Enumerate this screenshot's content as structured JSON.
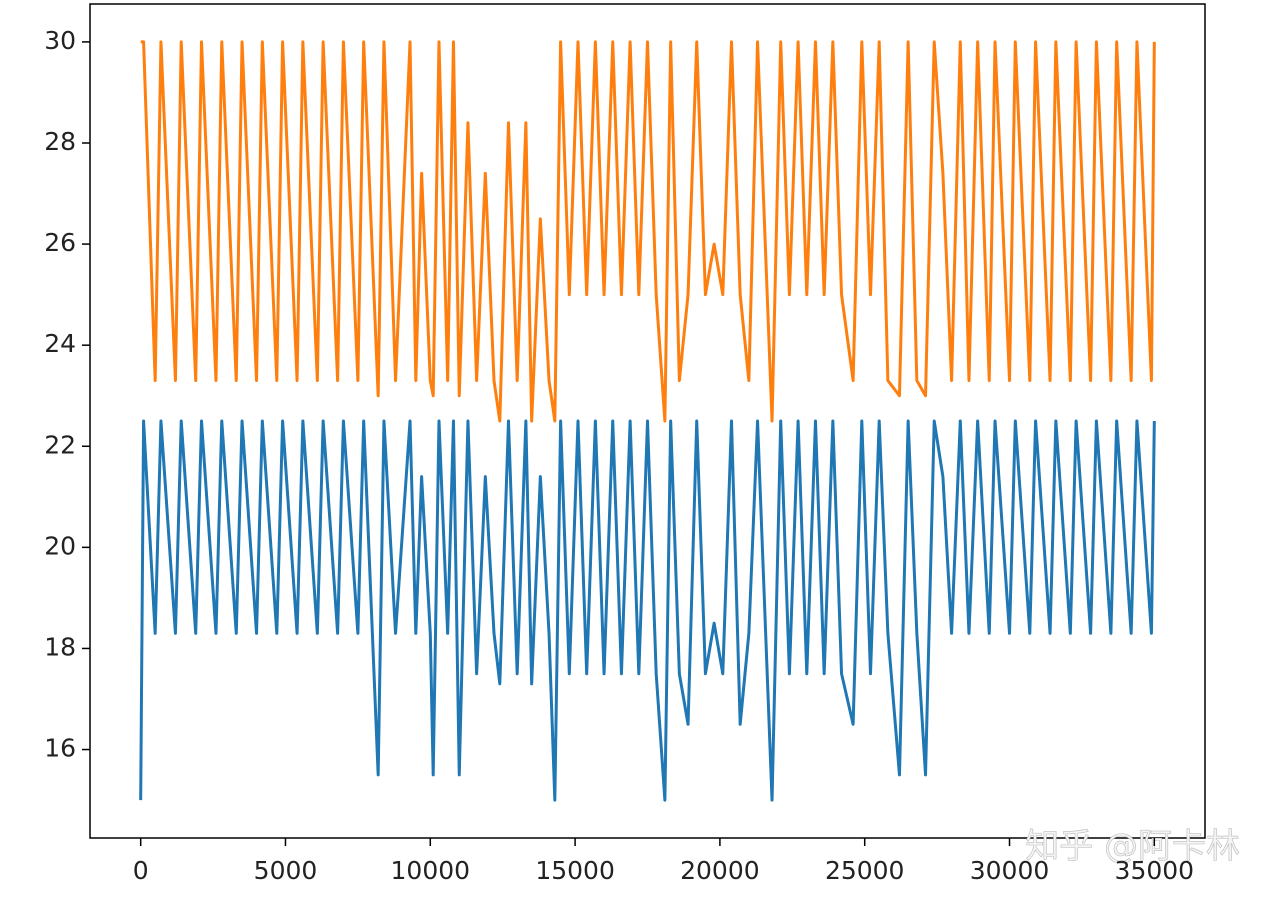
{
  "chart_data": {
    "type": "line",
    "x": [
      0,
      100,
      500,
      700,
      1200,
      1400,
      1900,
      2100,
      2600,
      2800,
      3300,
      3500,
      4000,
      4200,
      4700,
      4900,
      5400,
      5600,
      6100,
      6300,
      6800,
      7000,
      7500,
      7700,
      8200,
      8400,
      8800,
      9300,
      9500,
      9700,
      10000,
      10100,
      10300,
      10600,
      10800,
      11000,
      11300,
      11600,
      11900,
      12200,
      12400,
      12700,
      13000,
      13300,
      13500,
      13800,
      14100,
      14300,
      14500,
      14800,
      15100,
      15400,
      15700,
      16000,
      16300,
      16600,
      16900,
      17200,
      17500,
      17800,
      18100,
      18300,
      18600,
      18900,
      19200,
      19500,
      19800,
      20100,
      20400,
      20700,
      21000,
      21300,
      21800,
      22100,
      22400,
      22700,
      23000,
      23300,
      23600,
      23900,
      24200,
      24600,
      24900,
      25200,
      25500,
      25800,
      26200,
      26500,
      26800,
      27100,
      27400,
      27700,
      28000,
      28300,
      28600,
      28900,
      29300,
      29500,
      30000,
      30200,
      30700,
      30900,
      31400,
      31600,
      32100,
      32300,
      32800,
      33000,
      33500,
      33700,
      34200,
      34400,
      34900,
      35000
    ],
    "series": [
      {
        "color": "#1f77b4",
        "values": [
          15,
          22.5,
          18.3,
          22.5,
          18.3,
          22.5,
          18.3,
          22.5,
          18.3,
          22.5,
          18.3,
          22.5,
          18.3,
          22.5,
          18.3,
          22.5,
          18.3,
          22.5,
          18.3,
          22.5,
          18.3,
          22.5,
          18.3,
          22.5,
          15.5,
          22.5,
          18.3,
          22.5,
          18.3,
          21.4,
          18.3,
          15.5,
          22.5,
          18.3,
          22.5,
          15.5,
          22.5,
          17.5,
          21.4,
          18.3,
          17.3,
          22.5,
          17.5,
          22.5,
          17.3,
          21.4,
          18.3,
          15,
          22.5,
          17.5,
          22.5,
          17.5,
          22.5,
          17.5,
          22.5,
          17.5,
          22.5,
          17.5,
          22.5,
          17.5,
          15,
          22.5,
          17.5,
          16.5,
          22.5,
          17.5,
          18.5,
          17.5,
          22.5,
          16.5,
          18.3,
          22.5,
          15,
          22.5,
          17.5,
          22.5,
          17.5,
          22.5,
          17.5,
          22.5,
          17.5,
          16.5,
          22.5,
          17.5,
          22.5,
          18.3,
          15.5,
          22.5,
          18.3,
          15.5,
          22.5,
          21.4,
          18.3,
          22.5,
          18.3,
          22.5,
          18.3,
          22.5,
          18.3,
          22.5,
          18.3,
          22.5,
          18.3,
          22.5,
          18.3,
          22.5,
          18.3,
          22.5,
          18.3,
          22.5,
          18.3,
          22.5,
          18.3,
          22.5
        ]
      },
      {
        "color": "#ff7f0e",
        "values": [
          30,
          30,
          23.3,
          30,
          23.3,
          30,
          23.3,
          30,
          23.3,
          30,
          23.3,
          30,
          23.3,
          30,
          23.3,
          30,
          23.3,
          30,
          23.3,
          30,
          23.3,
          30,
          23.3,
          30,
          23,
          30,
          23.3,
          30,
          23.3,
          27.4,
          23.3,
          23,
          30,
          23.3,
          30,
          23,
          28.4,
          23.3,
          27.4,
          23.3,
          22.5,
          28.4,
          23.3,
          28.4,
          22.5,
          26.5,
          23.3,
          22.5,
          30,
          25,
          30,
          25,
          30,
          25,
          30,
          25,
          30,
          25,
          30,
          25,
          22.5,
          30,
          23.3,
          25,
          30,
          25,
          26,
          25,
          30,
          25,
          23.3,
          30,
          22.5,
          30,
          25,
          30,
          25,
          30,
          25,
          30,
          25,
          23.3,
          30,
          25,
          30,
          23.3,
          23,
          30,
          23.3,
          23,
          30,
          27.4,
          23.3,
          30,
          23.3,
          30,
          23.3,
          30,
          23.3,
          30,
          23.3,
          30,
          23.3,
          30,
          23.3,
          30,
          23.3,
          30,
          23.3,
          30,
          23.3,
          30,
          23.3,
          30
        ]
      }
    ],
    "xlim": [
      -1750,
      36750
    ],
    "ylim": [
      14.25,
      30.75
    ],
    "xticks": [
      0,
      5000,
      10000,
      15000,
      20000,
      25000,
      30000,
      35000
    ],
    "yticks": [
      16,
      18,
      20,
      22,
      24,
      26,
      28,
      30
    ],
    "watermark": "知乎 @阿卡林"
  }
}
